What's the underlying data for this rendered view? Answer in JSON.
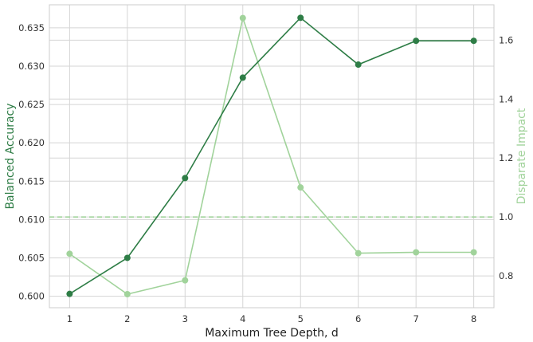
{
  "chart_data": {
    "type": "line",
    "title": "",
    "xlabel": "Maximum Tree Depth, d",
    "ylabel": "Balanced Accuracy",
    "y2label": "Disparate Impact",
    "x": [
      1,
      2,
      3,
      4,
      5,
      6,
      7,
      8
    ],
    "xlim": [
      0.65,
      8.35
    ],
    "ylim": [
      0.5985,
      0.638
    ],
    "y2lim": [
      0.692,
      1.72
    ],
    "yticks": [
      0.6,
      0.605,
      0.61,
      0.615,
      0.62,
      0.625,
      0.63,
      0.635
    ],
    "ytick_labels": [
      "0.600",
      "0.605",
      "0.610",
      "0.615",
      "0.620",
      "0.625",
      "0.630",
      "0.635"
    ],
    "y2ticks": [
      0.8,
      1.0,
      1.2,
      1.4,
      1.6
    ],
    "y2tick_labels": [
      "0.8",
      "1.0",
      "1.2",
      "1.4",
      "1.6"
    ],
    "grid": true,
    "series": [
      {
        "axis": "left",
        "color": "#2e7d46",
        "values": [
          0.6003,
          0.605,
          0.6154,
          0.6285,
          0.6363,
          0.6302,
          0.6333,
          0.6333
        ]
      },
      {
        "axis": "right",
        "color": "#a1d39b",
        "values": [
          0.875,
          0.738,
          0.785,
          1.675,
          1.1,
          0.877,
          0.88,
          0.88
        ]
      }
    ],
    "reference_line": {
      "axis": "right",
      "value": 1.0,
      "style": "dashed",
      "color": "#a1d39b"
    }
  }
}
